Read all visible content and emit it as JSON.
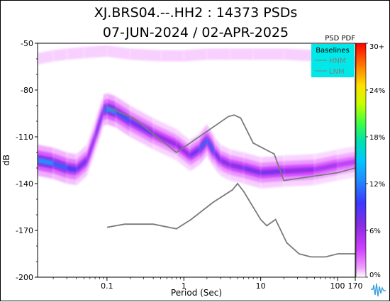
{
  "chart_data": {
    "type": "heatmap",
    "title": "XJ.BRS04.--.HH2 : 14373 PSDs",
    "subtitle": "07-JUN-2024 / 02-APR-2025",
    "xlabel": "Period (Sec)",
    "ylabel": "dB",
    "x_scale": "log",
    "xlim": [
      0.0125,
      170
    ],
    "ylim": [
      -200,
      -50
    ],
    "x_ticks": [
      "0.1",
      "1",
      "10",
      "100",
      "170"
    ],
    "y_ticks": [
      "-50",
      "-80",
      "-110",
      "-140",
      "-170",
      "-200"
    ],
    "colorbar": {
      "title": "PSD PDF",
      "ticks": [
        "0%",
        "6%",
        "12%",
        "18%",
        "24%",
        "30+"
      ],
      "range": [
        0,
        30
      ]
    },
    "legend": {
      "title": "Baselines",
      "entries": [
        "HNM",
        "LNM"
      ],
      "placement": "top-right"
    },
    "series": [
      {
        "name": "HNM",
        "x": [
          0.1,
          0.22,
          0.8,
          3.8,
          4.5,
          5.5,
          8,
          15,
          20,
          100,
          170
        ],
        "y": [
          -91,
          -98,
          -120,
          -97,
          -96,
          -98,
          -114,
          -121,
          -138,
          -133,
          -130
        ]
      },
      {
        "name": "LNM",
        "x": [
          0.1,
          0.17,
          0.4,
          0.8,
          1.24,
          2.4,
          4.3,
          5,
          6,
          10,
          12,
          15.6,
          21.9,
          31.6,
          45,
          70,
          101,
          154,
          170
        ],
        "y": [
          -168,
          -166,
          -166,
          -169,
          -163,
          -152,
          -144,
          -140,
          -145,
          -163,
          -167,
          -163,
          -178,
          -185,
          -187,
          -187,
          -185,
          -185,
          -185
        ]
      }
    ],
    "density_ridges": [
      {
        "x": [
          0.0125,
          0.02,
          0.03,
          0.04,
          0.055,
          0.07,
          0.09,
          0.1,
          0.13,
          0.2,
          0.4,
          0.8,
          1.2,
          1.6,
          2,
          2.5,
          3,
          4,
          6,
          10,
          20,
          50,
          100,
          170
        ],
        "y": [
          -125,
          -127,
          -130,
          -131,
          -125,
          -110,
          -93,
          -92,
          -94,
          -100,
          -108,
          -115,
          -122,
          -118,
          -112,
          -120,
          -125,
          -128,
          -130,
          -133,
          -132,
          -131,
          -128,
          -126
        ],
        "pct": [
          14,
          12,
          10,
          9,
          7,
          8,
          9,
          14,
          12,
          9,
          7,
          6,
          7,
          9,
          13,
          9,
          7,
          7,
          7,
          8,
          7,
          6,
          5,
          4
        ]
      },
      {
        "x": [
          0.0125,
          0.02,
          0.03,
          0.05,
          0.1,
          0.2,
          0.5,
          1,
          2,
          4,
          8,
          20,
          50,
          100,
          170
        ],
        "y": [
          -60,
          -58,
          -57,
          -56,
          -55,
          -57,
          -58,
          -58,
          -57,
          -57,
          -57,
          -57,
          -58,
          -60,
          -62
        ],
        "pct": [
          1,
          1,
          1,
          1,
          1,
          1,
          1,
          1,
          1,
          1,
          1,
          1,
          1,
          1,
          1
        ]
      }
    ]
  }
}
